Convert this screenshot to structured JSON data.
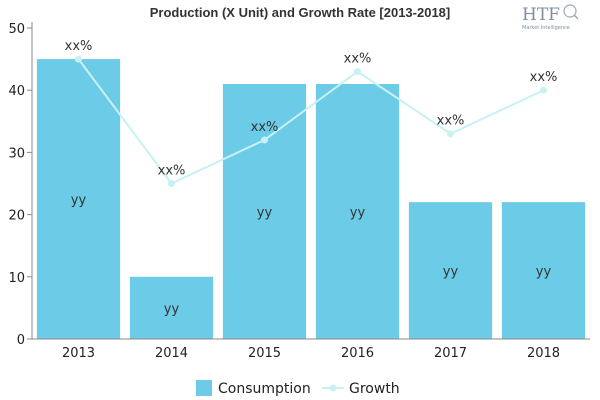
{
  "chart_data": {
    "type": "bar",
    "title": "Production (X Unit) and Growth Rate [2013-2018]",
    "categories": [
      "2013",
      "2014",
      "2015",
      "2016",
      "2017",
      "2018"
    ],
    "series": [
      {
        "name": "Consumption",
        "type": "bar",
        "values": [
          45,
          10,
          41,
          41,
          22,
          22
        ],
        "data_labels": [
          "yy",
          "yy",
          "yy",
          "yy",
          "yy",
          "yy"
        ]
      },
      {
        "name": "Growth",
        "type": "line",
        "values": [
          45,
          25,
          32,
          43,
          33,
          40
        ],
        "data_labels": [
          "xx%",
          "xx%",
          "xx%",
          "xx%",
          "xx%",
          "xx%"
        ]
      }
    ],
    "ylim": [
      0,
      50
    ],
    "yticks": [
      0,
      10,
      20,
      30,
      40,
      50
    ],
    "grid": false,
    "legend_position": "bottom",
    "colors": {
      "bar": "#6ccbe6",
      "line": "#c8f1f4"
    },
    "watermark": {
      "brand": "HTF",
      "subtitle": "Market Intelligence"
    }
  }
}
